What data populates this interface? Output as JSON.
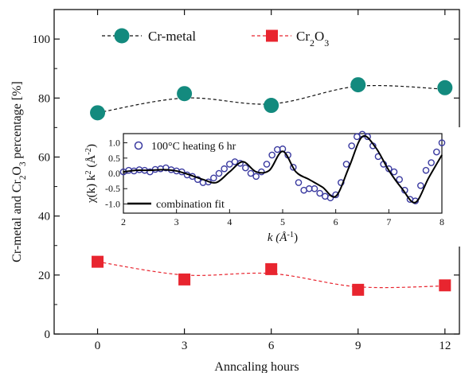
{
  "chart_data": [
    {
      "type": "scatter",
      "xlabel": "Anncaling hours",
      "ylabel_parts": [
        "Cr-metal and Cr",
        "2",
        "O",
        "3",
        " percentage [%]"
      ],
      "xlim": [
        -1.5,
        12.5
      ],
      "ylim": [
        0,
        110
      ],
      "xticks": [
        0,
        3,
        6,
        9,
        12
      ],
      "yticks": [
        0,
        20,
        40,
        60,
        80,
        100
      ],
      "series": [
        {
          "name": "Cr-metal",
          "legend_parts": [
            "Cr-metal"
          ],
          "marker": "circle",
          "color": "#138a7e",
          "line_color": "#111111",
          "x": [
            0,
            3,
            6,
            9,
            12
          ],
          "y": [
            75,
            81.5,
            77.5,
            84.5,
            83.5
          ],
          "fit_y": [
            75,
            80,
            78,
            84,
            83
          ]
        },
        {
          "name": "Cr2O3",
          "legend_parts": [
            "Cr",
            "2",
            "O",
            "3"
          ],
          "marker": "square",
          "color": "#e8252f",
          "line_color": "#e8252f",
          "x": [
            0,
            3,
            6,
            9,
            12
          ],
          "y": [
            24.5,
            18.5,
            22,
            15,
            16.5
          ],
          "fit_y": [
            24.5,
            20,
            20.5,
            16,
            16.3
          ]
        }
      ]
    },
    {
      "type": "line",
      "xlabel": "k (Å",
      "xlabel_sup": "-1",
      "xlabel_close": ")",
      "ylabel_parts": [
        "χ(k) k",
        "2",
        " (Å",
        "-2",
        ")"
      ],
      "xlim": [
        2,
        8
      ],
      "ylim": [
        -1.3,
        1.3
      ],
      "xticks": [
        2,
        3,
        4,
        5,
        6,
        7,
        8
      ],
      "yticks": [
        -1.0,
        -0.5,
        0.0,
        0.5,
        1.0
      ],
      "ytick_labels": [
        "-1.0",
        "-0.5",
        "0.0",
        "0.5",
        "1.0"
      ],
      "series": [
        {
          "name": "100°C heating 6 hr",
          "marker": "open-circle",
          "color": "#3a3aa0",
          "x": [
            2.0,
            2.1,
            2.2,
            2.3,
            2.4,
            2.5,
            2.6,
            2.7,
            2.8,
            2.9,
            3.0,
            3.1,
            3.2,
            3.3,
            3.4,
            3.5,
            3.6,
            3.7,
            3.8,
            3.9,
            4.0,
            4.1,
            4.2,
            4.3,
            4.4,
            4.5,
            4.6,
            4.7,
            4.8,
            4.9,
            5.0,
            5.1,
            5.2,
            5.3,
            5.4,
            5.5,
            5.6,
            5.7,
            5.8,
            5.9,
            6.0,
            6.1,
            6.2,
            6.3,
            6.4,
            6.5,
            6.6,
            6.7,
            6.8,
            6.9,
            7.0,
            7.1,
            7.2,
            7.3,
            7.4,
            7.5,
            7.6,
            7.7,
            7.8,
            7.9,
            8.0
          ],
          "y": [
            0.05,
            0.1,
            0.08,
            0.12,
            0.1,
            0.05,
            0.13,
            0.15,
            0.18,
            0.12,
            0.08,
            0.05,
            -0.05,
            -0.1,
            -0.2,
            -0.3,
            -0.28,
            -0.15,
            0.0,
            0.15,
            0.3,
            0.38,
            0.33,
            0.18,
            0.0,
            -0.1,
            0.05,
            0.3,
            0.6,
            0.78,
            0.8,
            0.6,
            0.2,
            -0.3,
            -0.55,
            -0.5,
            -0.5,
            -0.65,
            -0.75,
            -0.8,
            -0.7,
            -0.3,
            0.3,
            0.9,
            1.2,
            1.28,
            1.2,
            0.9,
            0.55,
            0.3,
            0.15,
            0.05,
            -0.2,
            -0.55,
            -0.85,
            -0.9,
            -0.4,
            0.1,
            0.35,
            0.7,
            1.0
          ]
        },
        {
          "name": "combination fit",
          "marker": "line",
          "color": "#000000",
          "x": [
            2.0,
            2.25,
            2.5,
            2.75,
            3.0,
            3.25,
            3.5,
            3.75,
            4.0,
            4.25,
            4.5,
            4.75,
            5.0,
            5.25,
            5.5,
            5.75,
            6.0,
            6.25,
            6.5,
            6.75,
            7.0,
            7.25,
            7.5,
            7.75,
            8.0
          ],
          "y": [
            0.05,
            0.1,
            0.1,
            0.12,
            0.08,
            -0.05,
            -0.2,
            -0.3,
            0.05,
            0.38,
            0.05,
            0.1,
            0.72,
            0.05,
            -0.2,
            -0.45,
            -0.75,
            0.2,
            1.2,
            0.85,
            0.1,
            -0.5,
            -0.95,
            -0.15,
            0.6
          ]
        }
      ]
    }
  ]
}
